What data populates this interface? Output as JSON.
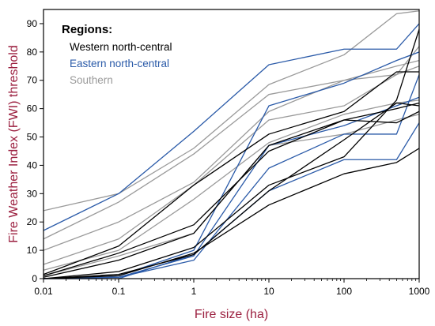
{
  "chart_data": {
    "type": "line",
    "xlabel": "Fire size (ha)",
    "ylabel": "Fire Weather Index (FWI) threshold",
    "x_scale": "log",
    "xlim": [
      0.01,
      1000
    ],
    "ylim": [
      0,
      95
    ],
    "x_ticks": [
      0.01,
      0.1,
      1,
      10,
      100,
      1000
    ],
    "x_tick_labels": [
      "0.01",
      "0.1",
      "1",
      "10",
      "100",
      "1000"
    ],
    "y_ticks": [
      0,
      10,
      20,
      30,
      40,
      50,
      60,
      70,
      80,
      90
    ],
    "y_tick_labels": [
      "0",
      "10",
      "20",
      "30",
      "40",
      "50",
      "60",
      "70",
      "80",
      "90"
    ],
    "legend": {
      "title": "Regions:",
      "position": "top-left",
      "entries": [
        {
          "label": "Western north-central",
          "color": "#000000"
        },
        {
          "label": "Eastern north-central",
          "color": "#2a5aa8"
        },
        {
          "label": "Southern",
          "color": "#9a9a9a"
        }
      ]
    },
    "x": [
      0.01,
      0.1,
      1,
      10,
      100,
      500,
      1000
    ],
    "series": [
      {
        "group": "Southern",
        "color": "#9a9a9a",
        "values": [
          24,
          30,
          46,
          68.5,
          79,
          93.5,
          94.5
        ]
      },
      {
        "group": "Southern",
        "color": "#9a9a9a",
        "values": [
          14,
          27,
          44,
          65,
          70,
          75,
          77
        ]
      },
      {
        "group": "Southern",
        "color": "#9a9a9a",
        "values": [
          10,
          20,
          34,
          59,
          70,
          72,
          75
        ]
      },
      {
        "group": "Southern",
        "color": "#9a9a9a",
        "values": [
          5,
          14,
          33,
          56,
          61,
          72,
          82
        ]
      },
      {
        "group": "Southern",
        "color": "#9a9a9a",
        "values": [
          3,
          10,
          28,
          48,
          58,
          62,
          63
        ]
      },
      {
        "group": "Southern",
        "color": "#9a9a9a",
        "values": [
          1,
          8,
          16,
          47,
          51,
          56,
          58
        ]
      },
      {
        "group": "Eastern north-central",
        "color": "#2a5aa8",
        "values": [
          17,
          30,
          52,
          75.5,
          81,
          81,
          90
        ]
      },
      {
        "group": "Eastern north-central",
        "color": "#2a5aa8",
        "values": [
          0,
          1,
          10,
          61,
          69,
          77,
          80
        ]
      },
      {
        "group": "Eastern north-central",
        "color": "#2a5aa8",
        "values": [
          0,
          0.5,
          8,
          47,
          54,
          61,
          64
        ]
      },
      {
        "group": "Eastern north-central",
        "color": "#2a5aa8",
        "values": [
          0,
          0.5,
          6.5,
          39,
          51,
          51,
          72
        ]
      },
      {
        "group": "Eastern north-central",
        "color": "#2a5aa8",
        "values": [
          0,
          0,
          8.5,
          31,
          42,
          42,
          55
        ]
      },
      {
        "group": "Western north-central",
        "color": "#000000",
        "values": [
          1.5,
          11.5,
          33,
          51,
          59,
          73,
          73
        ]
      },
      {
        "group": "Western north-central",
        "color": "#000000",
        "values": [
          1,
          9,
          19,
          45,
          56,
          60,
          62
        ]
      },
      {
        "group": "Western north-central",
        "color": "#000000",
        "values": [
          0.5,
          6.5,
          16,
          47,
          56,
          55,
          59
        ]
      },
      {
        "group": "Western north-central",
        "color": "#000000",
        "values": [
          0,
          2.5,
          11,
          33,
          43,
          63,
          88
        ]
      },
      {
        "group": "Western north-central",
        "color": "#000000",
        "values": [
          0,
          1.5,
          8.5,
          31,
          49,
          62,
          61
        ]
      },
      {
        "group": "Western north-central",
        "color": "#000000",
        "values": [
          0,
          1,
          9,
          26,
          37,
          41,
          46
        ]
      }
    ]
  }
}
